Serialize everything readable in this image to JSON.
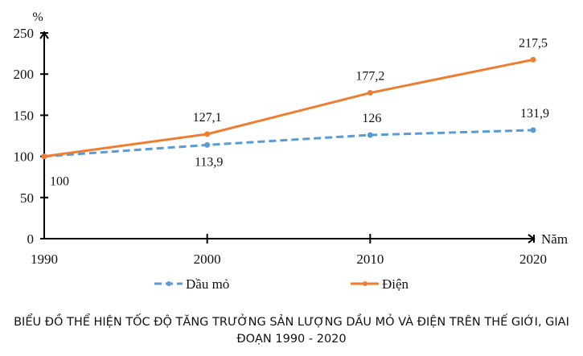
{
  "chart_data": {
    "type": "line",
    "title": "BIỂU ĐỒ THỂ HIỆN TỐC ĐỘ TĂNG TRƯỞNG SẢN LƯỢNG DẦU MỎ VÀ ĐIỆN TRÊN THẾ GIỚI, GIAI ĐOẠN 1990 - 2020",
    "ylabel": "%",
    "xlabel": "Năm",
    "x": [
      1990,
      2000,
      2010,
      2020
    ],
    "x_tick_labels": [
      "1990",
      "2000",
      "2010",
      "2020"
    ],
    "ylim": [
      0,
      250
    ],
    "y_ticks": [
      0,
      50,
      100,
      150,
      200,
      250
    ],
    "y_tick_labels": [
      "0",
      "50",
      "100",
      "150",
      "200",
      "250"
    ],
    "grid": false,
    "legend_placement": "bottom",
    "series": [
      {
        "name": "Dầu mỏ",
        "values": [
          100,
          113.9,
          126,
          131.9
        ],
        "labels": [
          "100",
          "113,9",
          "126",
          "131,9"
        ],
        "color": "#5b9bd5",
        "style": "dashed"
      },
      {
        "name": "Điện",
        "values": [
          100,
          127.1,
          177.2,
          217.5
        ],
        "labels": [
          "",
          "127,1",
          "177,2",
          "217,5"
        ],
        "color": "#ed7d31",
        "style": "solid"
      }
    ]
  }
}
